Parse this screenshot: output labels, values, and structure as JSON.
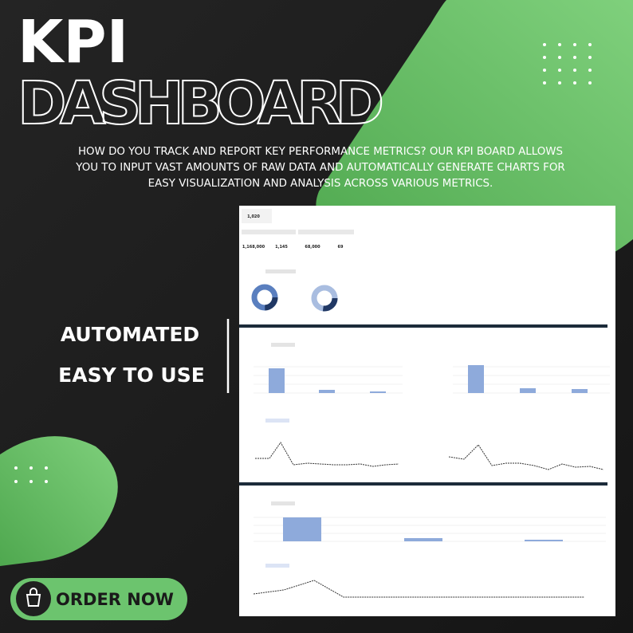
{
  "header": {
    "title": "KPI",
    "subtitle": "DASHBOARD",
    "description": [
      "HOW DO YOU TRACK AND REPORT KEY PERFORMANCE METRICS? OUR KPI BOARD ALLOWS",
      "YOU TO INPUT VAST AMOUNTS OF RAW DATA AND AUTOMATICALLY GENERATE CHARTS FOR",
      "EASY VISUALIZATION AND ANALYSIS ACROSS VARIOUS METRICS."
    ]
  },
  "features": [
    "AUTOMATED",
    "EASY TO USE"
  ],
  "button": {
    "label": "ORDER NOW"
  },
  "dashboard": {
    "kpis": [
      "1,020",
      "1,168,000",
      "1,145",
      "68,000",
      "69"
    ]
  }
}
